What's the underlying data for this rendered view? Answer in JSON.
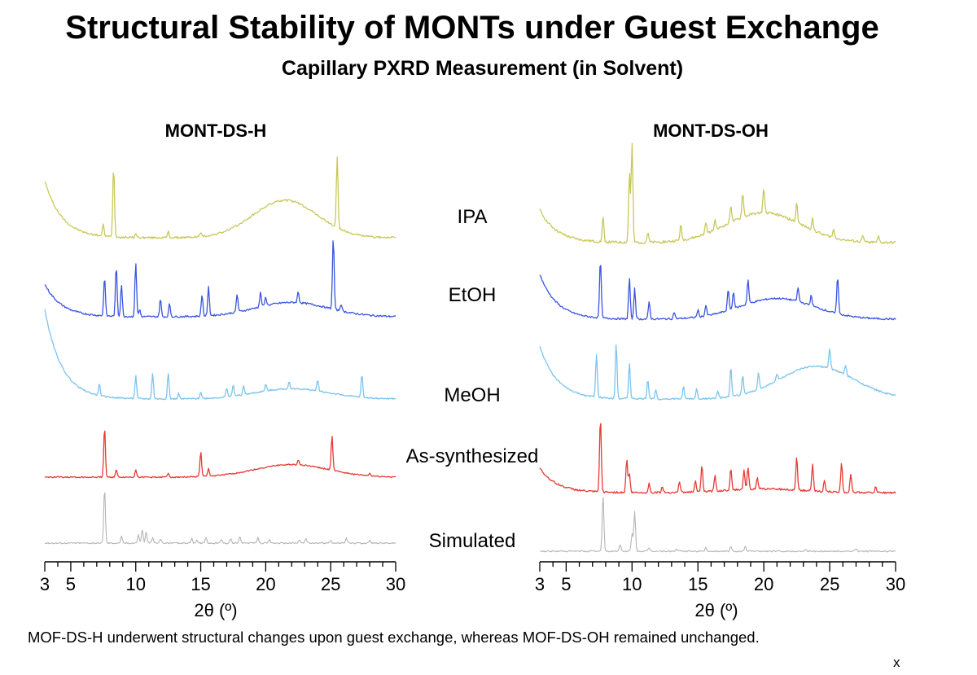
{
  "title": "Structural Stability of MONTs under Guest Exchange",
  "subtitle": "Capillary PXRD Measurement (in Solvent)",
  "caption": "MOF-DS-H underwent structural changes upon guest exchange, whereas MOF-DS-OH remained unchanged.",
  "stray_mark": "x",
  "colors": {
    "IPA": "#c8c85a",
    "EtOH": "#3a55e0",
    "MeOH": "#7cc4ee",
    "As-synthesized": "#e63a32",
    "Simulated": "#b5b5b5"
  },
  "chart_data": [
    {
      "type": "line",
      "title": "MONT-DS-H",
      "xlabel": "2θ (º)",
      "xlim": [
        3,
        30
      ],
      "xticks": [
        3,
        5,
        10,
        15,
        20,
        25,
        30
      ],
      "yaxis": "none (stacked offset intensity, arbitrary units)",
      "series": [
        {
          "name": "IPA",
          "baseline": "decaying",
          "hump": {
            "center": 21.5,
            "width": 3.5,
            "height": 0.5
          },
          "peaks": [
            [
              7.5,
              0.15
            ],
            [
              8.3,
              0.95
            ],
            [
              10.0,
              0.05
            ],
            [
              12.5,
              0.08
            ],
            [
              15.0,
              0.06
            ],
            [
              25.5,
              0.95
            ]
          ]
        },
        {
          "name": "EtOH",
          "baseline": "decaying",
          "hump": {
            "center": 22,
            "width": 4,
            "height": 0.2
          },
          "peaks": [
            [
              7.6,
              0.55
            ],
            [
              8.5,
              0.7
            ],
            [
              8.9,
              0.45
            ],
            [
              10.0,
              0.75
            ],
            [
              10.3,
              0.1
            ],
            [
              11.9,
              0.25
            ],
            [
              12.6,
              0.18
            ],
            [
              15.1,
              0.3
            ],
            [
              15.6,
              0.4
            ],
            [
              17.8,
              0.25
            ],
            [
              19.6,
              0.2
            ],
            [
              20.0,
              0.12
            ],
            [
              22.5,
              0.15
            ],
            [
              25.2,
              1.0
            ],
            [
              25.8,
              0.1
            ]
          ]
        },
        {
          "name": "MeOH",
          "baseline": "decaying",
          "hump": {
            "center": 22,
            "width": 4,
            "height": 0.18
          },
          "peaks": [
            [
              7.2,
              0.2
            ],
            [
              10.0,
              0.4
            ],
            [
              11.3,
              0.45
            ],
            [
              12.5,
              0.45
            ],
            [
              13.3,
              0.1
            ],
            [
              15.0,
              0.12
            ],
            [
              17.0,
              0.15
            ],
            [
              17.5,
              0.2
            ],
            [
              18.3,
              0.15
            ],
            [
              20.0,
              0.12
            ],
            [
              21.8,
              0.12
            ],
            [
              24.0,
              0.2
            ],
            [
              27.4,
              0.4
            ]
          ]
        },
        {
          "name": "As-synthesized",
          "baseline": "flat",
          "hump": {
            "center": 22,
            "width": 4,
            "height": 0.25
          },
          "peaks": [
            [
              7.6,
              1.0
            ],
            [
              8.5,
              0.15
            ],
            [
              10.0,
              0.15
            ],
            [
              12.5,
              0.08
            ],
            [
              15.0,
              0.5
            ],
            [
              15.6,
              0.15
            ],
            [
              22.5,
              0.1
            ],
            [
              25.1,
              0.7
            ],
            [
              28.0,
              0.05
            ]
          ]
        },
        {
          "name": "Simulated",
          "baseline": "flat",
          "hump": {
            "center": 20,
            "width": 4,
            "height": 0.0
          },
          "peaks": [
            [
              7.6,
              1.0
            ],
            [
              8.9,
              0.12
            ],
            [
              10.2,
              0.15
            ],
            [
              10.5,
              0.25
            ],
            [
              10.8,
              0.2
            ],
            [
              11.3,
              0.1
            ],
            [
              11.9,
              0.08
            ],
            [
              14.3,
              0.08
            ],
            [
              14.7,
              0.06
            ],
            [
              15.4,
              0.1
            ],
            [
              16.6,
              0.06
            ],
            [
              17.3,
              0.08
            ],
            [
              18.0,
              0.12
            ],
            [
              19.4,
              0.1
            ],
            [
              20.3,
              0.06
            ],
            [
              22.6,
              0.06
            ],
            [
              23.1,
              0.08
            ],
            [
              25.0,
              0.06
            ],
            [
              26.2,
              0.1
            ],
            [
              28.0,
              0.05
            ]
          ]
        }
      ]
    },
    {
      "type": "line",
      "title": "MONT-DS-OH",
      "xlabel": "2θ (º)",
      "xlim": [
        3,
        30
      ],
      "xticks": [
        3,
        5,
        10,
        15,
        20,
        25,
        30
      ],
      "yaxis": "none (stacked offset intensity, arbitrary units)",
      "series": [
        {
          "name": "IPA",
          "baseline": "decaying",
          "hump": {
            "center": 20,
            "width": 4,
            "height": 0.3
          },
          "peaks": [
            [
              7.8,
              0.25
            ],
            [
              9.8,
              0.7
            ],
            [
              10.0,
              1.0
            ],
            [
              11.2,
              0.1
            ],
            [
              13.7,
              0.15
            ],
            [
              15.6,
              0.12
            ],
            [
              16.3,
              0.1
            ],
            [
              17.5,
              0.18
            ],
            [
              18.4,
              0.25
            ],
            [
              20.0,
              0.25
            ],
            [
              22.5,
              0.2
            ],
            [
              23.7,
              0.12
            ],
            [
              25.3,
              0.08
            ],
            [
              27.5,
              0.06
            ],
            [
              28.7,
              0.06
            ]
          ]
        },
        {
          "name": "EtOH",
          "baseline": "decaying",
          "hump": {
            "center": 21,
            "width": 4,
            "height": 0.3
          },
          "peaks": [
            [
              7.6,
              0.85
            ],
            [
              9.8,
              0.6
            ],
            [
              10.2,
              0.45
            ],
            [
              11.3,
              0.25
            ],
            [
              13.2,
              0.1
            ],
            [
              15.0,
              0.1
            ],
            [
              15.6,
              0.15
            ],
            [
              17.3,
              0.3
            ],
            [
              17.7,
              0.25
            ],
            [
              18.8,
              0.35
            ],
            [
              22.6,
              0.2
            ],
            [
              23.6,
              0.15
            ],
            [
              25.6,
              0.55
            ]
          ]
        },
        {
          "name": "MeOH",
          "baseline": "decaying",
          "hump": {
            "center": 24,
            "width": 4,
            "height": 0.5
          },
          "peaks": [
            [
              7.3,
              0.65
            ],
            [
              8.8,
              0.85
            ],
            [
              9.8,
              0.55
            ],
            [
              11.2,
              0.3
            ],
            [
              11.8,
              0.15
            ],
            [
              13.9,
              0.2
            ],
            [
              14.9,
              0.15
            ],
            [
              16.5,
              0.1
            ],
            [
              17.5,
              0.45
            ],
            [
              18.4,
              0.3
            ],
            [
              19.6,
              0.25
            ],
            [
              21.0,
              0.1
            ],
            [
              25.0,
              0.3
            ],
            [
              26.2,
              0.15
            ]
          ]
        },
        {
          "name": "As-synthesized",
          "baseline": "decaying",
          "hump": {
            "center": 20,
            "width": 4,
            "height": 0.05
          },
          "peaks": [
            [
              7.6,
              1.0
            ],
            [
              9.6,
              0.45
            ],
            [
              9.8,
              0.25
            ],
            [
              11.3,
              0.12
            ],
            [
              12.3,
              0.08
            ],
            [
              13.6,
              0.15
            ],
            [
              14.8,
              0.15
            ],
            [
              15.3,
              0.35
            ],
            [
              16.3,
              0.2
            ],
            [
              17.5,
              0.3
            ],
            [
              18.5,
              0.25
            ],
            [
              18.8,
              0.3
            ],
            [
              19.5,
              0.15
            ],
            [
              22.5,
              0.45
            ],
            [
              23.7,
              0.35
            ],
            [
              24.6,
              0.15
            ],
            [
              25.9,
              0.4
            ],
            [
              26.6,
              0.25
            ],
            [
              28.5,
              0.08
            ]
          ]
        },
        {
          "name": "Simulated",
          "baseline": "flat",
          "hump": {
            "center": 20,
            "width": 4,
            "height": 0.0
          },
          "peaks": [
            [
              7.8,
              1.0
            ],
            [
              9.1,
              0.12
            ],
            [
              10.0,
              0.3
            ],
            [
              10.2,
              0.7
            ],
            [
              11.3,
              0.06
            ],
            [
              13.4,
              0.04
            ],
            [
              15.6,
              0.06
            ],
            [
              17.5,
              0.08
            ],
            [
              18.6,
              0.08
            ],
            [
              23.2,
              0.04
            ],
            [
              27.0,
              0.04
            ]
          ]
        }
      ]
    }
  ],
  "sample_labels": [
    "IPA",
    "EtOH",
    "MeOH",
    "As-synthesized",
    "Simulated"
  ]
}
